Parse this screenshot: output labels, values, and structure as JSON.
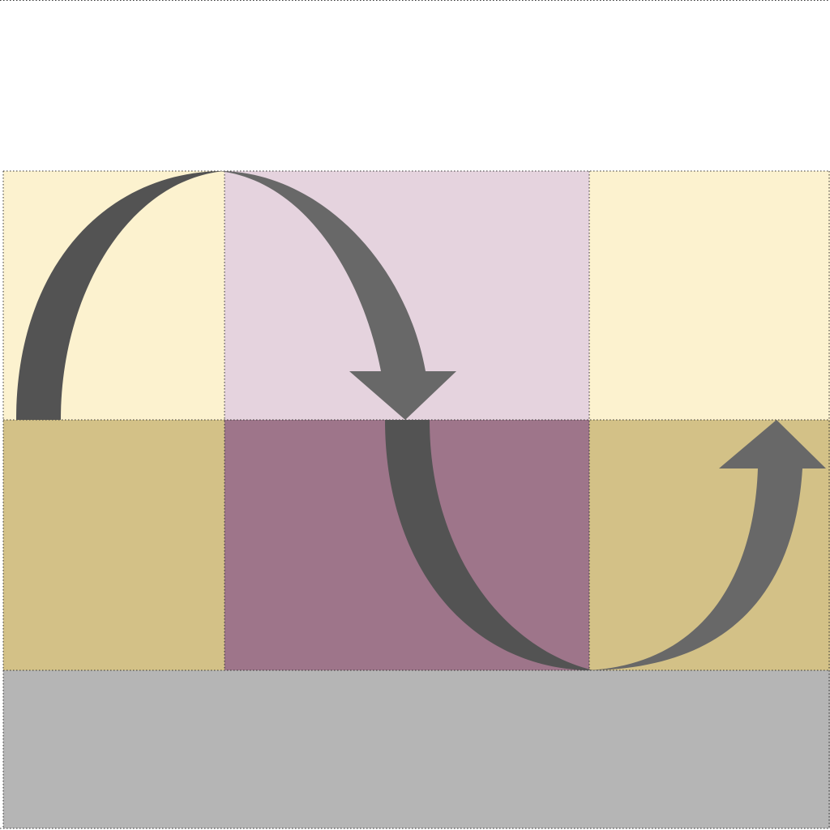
{
  "diagram": {
    "type": "grid-with-curved-arrows",
    "rows": 3,
    "columns": 3,
    "colors": {
      "background": "#ffffff",
      "light_yellow": "#fcf2cf",
      "light_pink": "#e5d3de",
      "tan": "#d3c187",
      "mauve": "#9e758a",
      "gray_band": "#b5b5b5",
      "arrow_dark": "#535353",
      "arrow_medium": "#686868",
      "grid_line": "#333333"
    },
    "cells": [
      {
        "row": 1,
        "col": 1,
        "color": "light_yellow"
      },
      {
        "row": 1,
        "col": 2,
        "color": "light_pink"
      },
      {
        "row": 1,
        "col": 3,
        "color": "light_yellow"
      },
      {
        "row": 2,
        "col": 1,
        "color": "tan"
      },
      {
        "row": 2,
        "col": 2,
        "color": "mauve"
      },
      {
        "row": 2,
        "col": 3,
        "color": "tan"
      },
      {
        "row": 3,
        "col": 1,
        "color": "gray_band"
      },
      {
        "row": 3,
        "col": 2,
        "color": "gray_band"
      },
      {
        "row": 3,
        "col": 3,
        "color": "gray_band"
      }
    ],
    "arrows": [
      {
        "name": "arrow-over-top",
        "direction": "clockwise-downward",
        "from": "row1-col1",
        "to": "row1-col2"
      },
      {
        "name": "arrow-under-bottom",
        "direction": "counterclockwise-upward",
        "from": "row2-col2",
        "to": "row2-col3"
      }
    ]
  }
}
